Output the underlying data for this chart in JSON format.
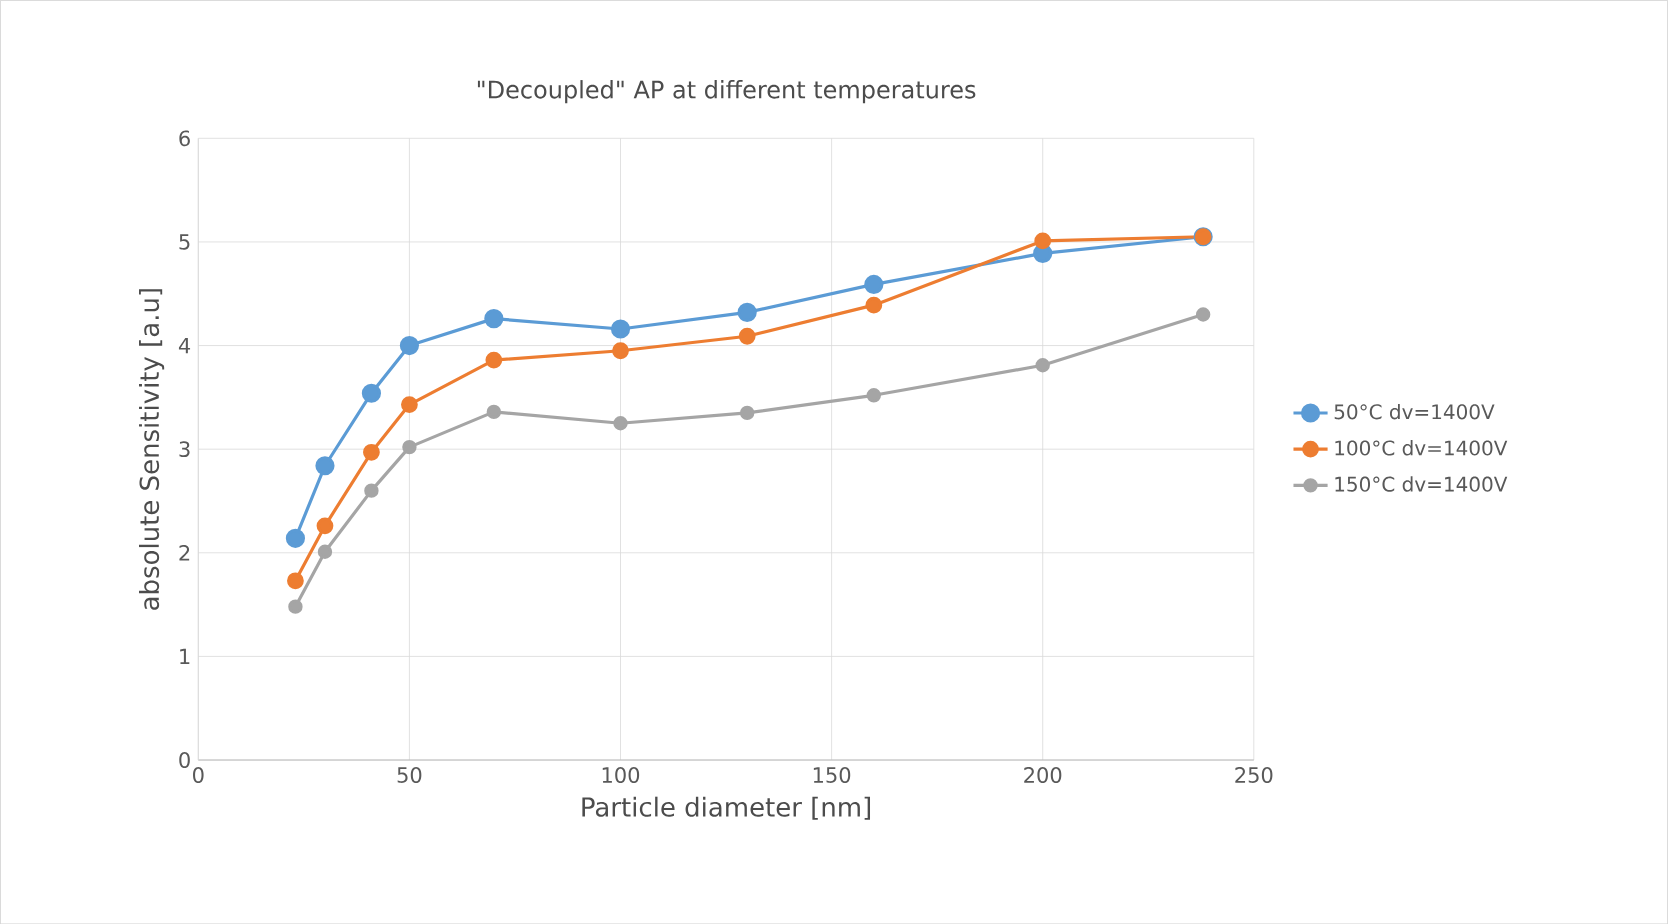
{
  "chart_data": {
    "type": "line",
    "title": "\"Decoupled\" AP at different temperatures",
    "xlabel": "Particle diameter [nm]",
    "ylabel": "absolute Sensitivity [a.u]",
    "x": [
      23,
      30,
      41,
      50,
      70,
      100,
      130,
      160,
      200,
      238
    ],
    "series": [
      {
        "name": "50°C dv=1400V",
        "color": "#5b9bd5",
        "values": [
          2.14,
          2.84,
          3.54,
          4.0,
          4.26,
          4.16,
          4.32,
          4.59,
          4.89,
          5.05
        ]
      },
      {
        "name": "100°C dv=1400V",
        "color": "#ed7d31",
        "values": [
          1.73,
          2.26,
          2.97,
          3.43,
          3.86,
          3.95,
          4.09,
          4.39,
          5.01,
          5.05
        ]
      },
      {
        "name": "150°C dv=1400V",
        "color": "#a5a5a5",
        "values": [
          1.48,
          2.01,
          2.6,
          3.02,
          3.36,
          3.25,
          3.35,
          3.52,
          3.81,
          4.3
        ]
      }
    ],
    "xlim": [
      0,
      250
    ],
    "xticks": [
      0,
      50,
      100,
      150,
      200,
      250
    ],
    "ylim": [
      0,
      6
    ],
    "yticks": [
      0,
      1,
      2,
      3,
      4,
      5,
      6
    ],
    "grid": true,
    "legend": "right",
    "marker": "circle",
    "line_style": "solid"
  }
}
